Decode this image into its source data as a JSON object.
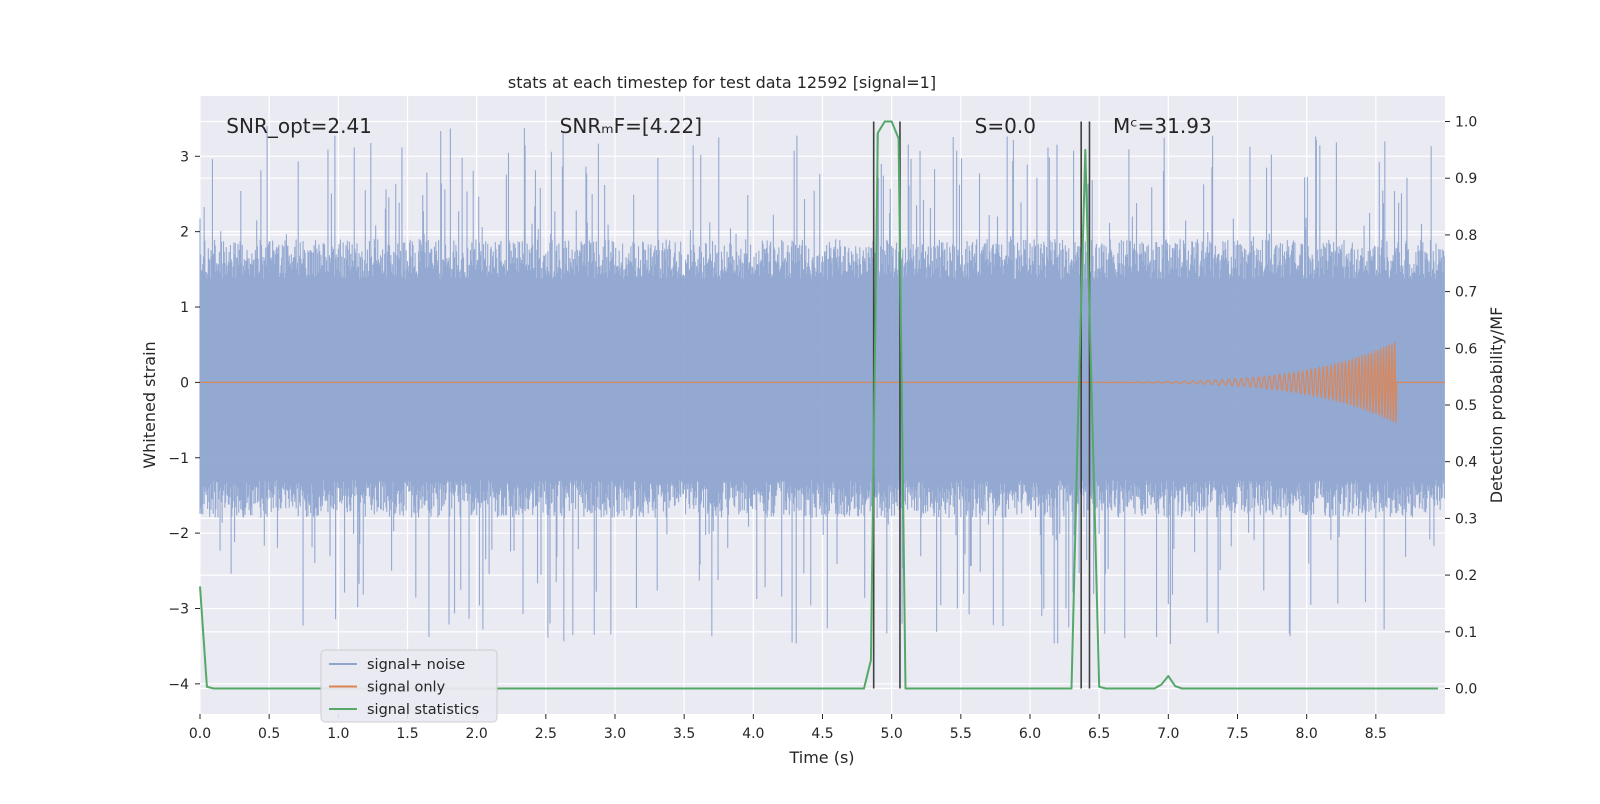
{
  "chart_data": {
    "type": "line",
    "title": "stats at each timestep for test data 12592 [signal=1]",
    "xlabel": "Time (s)",
    "ylabel": "Whitened strain",
    "y2label": "Detection probability/MF",
    "xlim": [
      0.0,
      9.0
    ],
    "ylim": [
      -4.4,
      3.8
    ],
    "y2lim": [
      -0.045,
      1.045
    ],
    "xticks": [
      "0.0",
      "0.5",
      "1.0",
      "1.5",
      "2.0",
      "2.5",
      "3.0",
      "3.5",
      "4.0",
      "4.5",
      "5.0",
      "5.5",
      "6.0",
      "6.5",
      "7.0",
      "7.5",
      "8.0",
      "8.5"
    ],
    "xtick_values": [
      0.0,
      0.5,
      1.0,
      1.5,
      2.0,
      2.5,
      3.0,
      3.5,
      4.0,
      4.5,
      5.0,
      5.5,
      6.0,
      6.5,
      7.0,
      7.5,
      8.0,
      8.5
    ],
    "yticks": [
      "3",
      "2",
      "1",
      "0",
      "−1",
      "−2",
      "−3",
      "−4"
    ],
    "ytick_values": [
      3,
      2,
      1,
      0,
      -1,
      -2,
      -3,
      -4
    ],
    "y2ticks": [
      "1.0",
      "0.9",
      "0.8",
      "0.7",
      "0.6",
      "0.5",
      "0.4",
      "0.3",
      "0.2",
      "0.1",
      "0.0"
    ],
    "y2tick_values": [
      1.0,
      0.9,
      0.8,
      0.7,
      0.6,
      0.5,
      0.4,
      0.3,
      0.2,
      0.1,
      0.0
    ],
    "grid": true,
    "legend_position": "lower-left",
    "annotations": [
      {
        "text": "SNR_opt=2.41",
        "x": 0.19,
        "y": 3.4
      },
      {
        "text": "SNRₘF=[4.22]",
        "x": 2.6,
        "y": 3.4
      },
      {
        "text": "S=0.0",
        "x": 5.6,
        "y": 3.4
      },
      {
        "text": "Mᶜ=31.93",
        "x": 6.6,
        "y": 3.4
      }
    ],
    "series": [
      {
        "name": "signal+ noise",
        "color": "#8fa5cf",
        "kind": "noise",
        "axis": "left",
        "x_range": [
          0.0,
          9.0
        ],
        "amplitude_band": [
          -1.8,
          1.9
        ],
        "extremes": [
          -3.5,
          3.4
        ]
      },
      {
        "name": "signal only",
        "color": "#dd8452",
        "kind": "chirp",
        "axis": "left",
        "x_range": [
          0.0,
          8.65
        ],
        "peak_amplitude": 0.55
      },
      {
        "name": "signal statistics",
        "color": "#55a868",
        "kind": "line",
        "axis": "right",
        "x": [
          0.0,
          0.05,
          0.1,
          0.15,
          4.8,
          4.85,
          4.9,
          4.95,
          5.0,
          5.05,
          5.1,
          5.15,
          5.2,
          6.3,
          6.35,
          6.4,
          6.45,
          6.5,
          6.55,
          6.6,
          6.9,
          6.95,
          7.0,
          7.05,
          7.1,
          8.95
        ],
        "y": [
          0.18,
          0.003,
          0.0,
          0.0,
          0.0,
          0.05,
          0.98,
          1.0,
          1.0,
          0.97,
          0.0,
          0.0,
          0.0,
          0.0,
          0.5,
          0.95,
          0.48,
          0.003,
          0.0,
          0.0,
          0.0,
          0.007,
          0.022,
          0.004,
          0.0,
          0.0
        ]
      }
    ],
    "vertical_markers": {
      "color": "#404040",
      "x": [
        4.87,
        5.06,
        6.37,
        6.43
      ],
      "y2_range": [
        0.0,
        1.0
      ]
    }
  }
}
